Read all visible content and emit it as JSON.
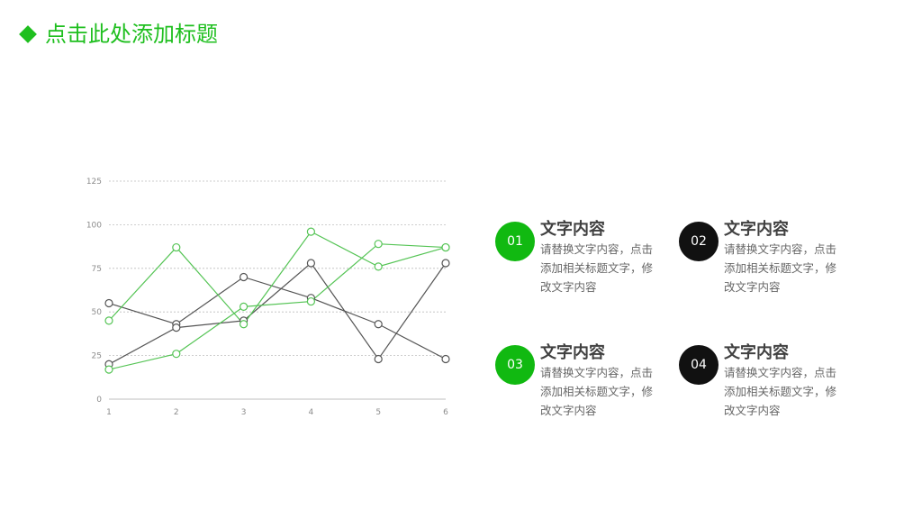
{
  "header": {
    "title": "点击此处添加标题"
  },
  "chart_data": {
    "type": "line",
    "x": [
      1,
      2,
      3,
      4,
      5,
      6
    ],
    "categories": [
      "1",
      "2",
      "3",
      "4",
      "5",
      "6"
    ],
    "ylim": [
      0,
      125
    ],
    "yticks": [
      0,
      25,
      50,
      75,
      100,
      125
    ],
    "grid": true,
    "series": [
      {
        "values": [
          55,
          43,
          70,
          58,
          43,
          23
        ],
        "color": "#555555"
      },
      {
        "values": [
          20,
          41,
          45,
          78,
          23,
          78
        ],
        "color": "#555555"
      },
      {
        "values": [
          45,
          87,
          43,
          96,
          76,
          87
        ],
        "color": "#55c455"
      },
      {
        "values": [
          17,
          26,
          53,
          56,
          89,
          87
        ],
        "color": "#55c455"
      }
    ]
  },
  "cards": [
    {
      "num": "01",
      "title": "文字内容",
      "text": "请替换文字内容，点击添加相关标题文字，修改文字内容",
      "color": "#11b911"
    },
    {
      "num": "02",
      "title": "文字内容",
      "text": "请替换文字内容，点击添加相关标题文字，修改文字内容",
      "color": "#111111"
    },
    {
      "num": "03",
      "title": "文字内容",
      "text": "请替换文字内容，点击添加相关标题文字，修改文字内容",
      "color": "#11b911"
    },
    {
      "num": "04",
      "title": "文字内容",
      "text": "请替换文字内容，点击添加相关标题文字，修改文字内容",
      "color": "#111111"
    }
  ]
}
